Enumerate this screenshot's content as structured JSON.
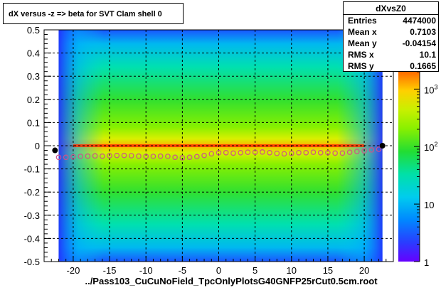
{
  "title": "dX versus -z  => beta for SVT Clam shell 0",
  "stats": {
    "name": "dXvsZ0",
    "rows": [
      {
        "label": "Entries",
        "value": "4474000"
      },
      {
        "label": "Mean x",
        "value": "0.7103"
      },
      {
        "label": "Mean y",
        "value": "-0.04154"
      },
      {
        "label": "RMS x",
        "value": "10.1"
      },
      {
        "label": "RMS y",
        "value": "0.1665"
      }
    ]
  },
  "colors": {
    "background": "#ffffff",
    "markers": "#d0508a",
    "endpoints": "#000000",
    "grid": "#000000"
  },
  "chart_data": {
    "type": "heatmap",
    "title": "dX versus -z  => beta for SVT Clam shell 0",
    "xlabel": "../Pass103_CuCuNoField_TpcOnlyPlotsG40GNFP25rCut0.5cm.root",
    "ylabel": "",
    "xlim": [
      -24,
      24
    ],
    "ylim": [
      -0.5,
      0.5
    ],
    "x_ticks": [
      -20,
      -15,
      -10,
      -5,
      0,
      5,
      10,
      15,
      20
    ],
    "y_ticks": [
      -0.5,
      -0.4,
      -0.3,
      -0.2,
      -0.1,
      0,
      0.1,
      0.2,
      0.3,
      0.4,
      0.5
    ],
    "grid": true,
    "z_scale": "log",
    "z_range": [
      1,
      2000
    ],
    "z_ticks": [
      {
        "value": 1,
        "label": "1"
      },
      {
        "value": 10,
        "label": "10"
      },
      {
        "value": 100,
        "label": "10^2"
      },
      {
        "value": 1000,
        "label": "10^3"
      }
    ],
    "profile": {
      "x": [
        -22,
        -21,
        -20,
        -19,
        -18,
        -17,
        -16,
        -15,
        -14,
        -13,
        -12,
        -11,
        -10,
        -9,
        -8,
        -7,
        -6,
        -5,
        -4,
        -3,
        -2,
        -1,
        0,
        1,
        2,
        3,
        4,
        5,
        6,
        7,
        8,
        9,
        10,
        11,
        12,
        13,
        14,
        15,
        16,
        17,
        18,
        19,
        20,
        21,
        22
      ],
      "y": [
        -0.05,
        -0.05,
        -0.048,
        -0.046,
        -0.045,
        -0.044,
        -0.045,
        -0.043,
        -0.042,
        -0.042,
        -0.043,
        -0.045,
        -0.046,
        -0.046,
        -0.045,
        -0.046,
        -0.05,
        -0.052,
        -0.05,
        -0.047,
        -0.042,
        -0.035,
        -0.03,
        -0.03,
        -0.032,
        -0.03,
        -0.028,
        -0.028,
        -0.027,
        -0.03,
        -0.033,
        -0.035,
        -0.033,
        -0.03,
        -0.03,
        -0.028,
        -0.03,
        -0.03,
        -0.032,
        -0.032,
        -0.028,
        -0.025,
        -0.022,
        -0.018,
        -0.015
      ]
    },
    "endpoints": [
      {
        "x": -22.5,
        "y": -0.02
      },
      {
        "x": 22.5,
        "y": 0
      }
    ]
  }
}
